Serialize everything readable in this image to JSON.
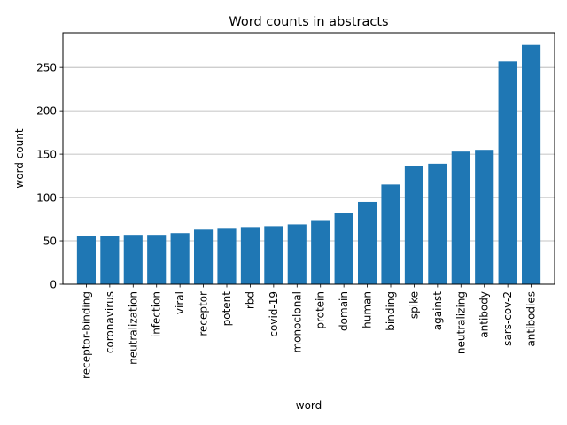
{
  "chart_data": {
    "type": "bar",
    "title": "Word counts in abstracts",
    "xlabel": "word",
    "ylabel": "word count",
    "categories": [
      "receptor-binding",
      "coronavirus",
      "neutralization",
      "infection",
      "viral",
      "receptor",
      "potent",
      "rbd",
      "covid-19",
      "monoclonal",
      "protein",
      "domain",
      "human",
      "binding",
      "spike",
      "against",
      "neutralizing",
      "antibody",
      "sars-cov-2",
      "antibodies"
    ],
    "values": [
      56,
      56,
      57,
      57,
      59,
      63,
      64,
      66,
      67,
      69,
      73,
      82,
      95,
      115,
      136,
      139,
      153,
      155,
      257,
      276
    ],
    "ylim": [
      0,
      290
    ],
    "yticks": [
      0,
      50,
      100,
      150,
      200,
      250
    ],
    "grid": "y",
    "bar_color": "#1f77b4"
  }
}
